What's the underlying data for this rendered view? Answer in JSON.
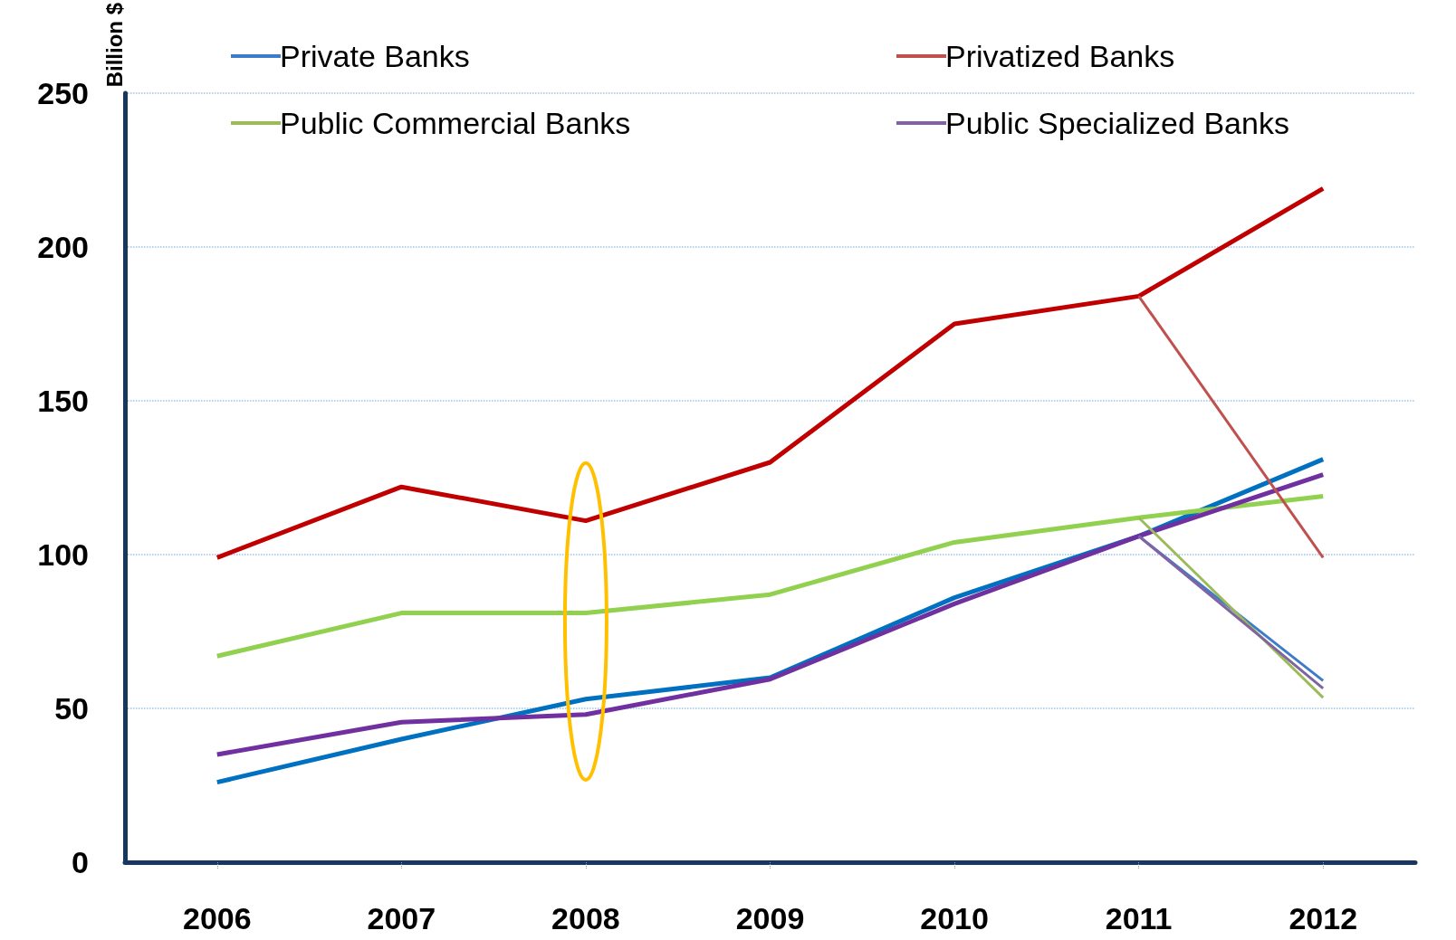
{
  "chart_data": {
    "type": "line",
    "ylabel": "Billion $",
    "categories": [
      "2006",
      "2007",
      "2008",
      "2009",
      "2010",
      "2011",
      "2012"
    ],
    "series": [
      {
        "name": "Private Banks",
        "color": "#3d7cc9",
        "values": [
          null,
          null,
          null,
          null,
          null,
          106,
          59
        ]
      },
      {
        "name": "Privatized Banks",
        "color": "#c0504d",
        "values": [
          null,
          null,
          null,
          null,
          null,
          184,
          99
        ]
      },
      {
        "name": "Public Commercial Banks",
        "color": "#9bbb59",
        "values": [
          null,
          null,
          null,
          null,
          null,
          112,
          53.5
        ]
      },
      {
        "name": "Public Specialized Banks",
        "color": "#8064a2",
        "values": [
          null,
          null,
          null,
          null,
          null,
          106,
          56.5
        ]
      },
      {
        "color": "#0070c0",
        "values": [
          26,
          40,
          53,
          60,
          86,
          106,
          131
        ]
      },
      {
        "color": "#c00000",
        "values": [
          99,
          122,
          111,
          130,
          175,
          184,
          219
        ]
      },
      {
        "color": "#92d050",
        "values": [
          67,
          81,
          81,
          87,
          104,
          112,
          119
        ]
      },
      {
        "color": "#7030a0",
        "values": [
          35,
          45.5,
          48,
          59.5,
          84,
          106,
          126
        ]
      }
    ],
    "ylim": [
      0,
      250
    ],
    "yticks": [
      0,
      50,
      100,
      150,
      200,
      250
    ],
    "grid": "y",
    "legend": "top left",
    "marker": "none",
    "line_style": "solid"
  }
}
